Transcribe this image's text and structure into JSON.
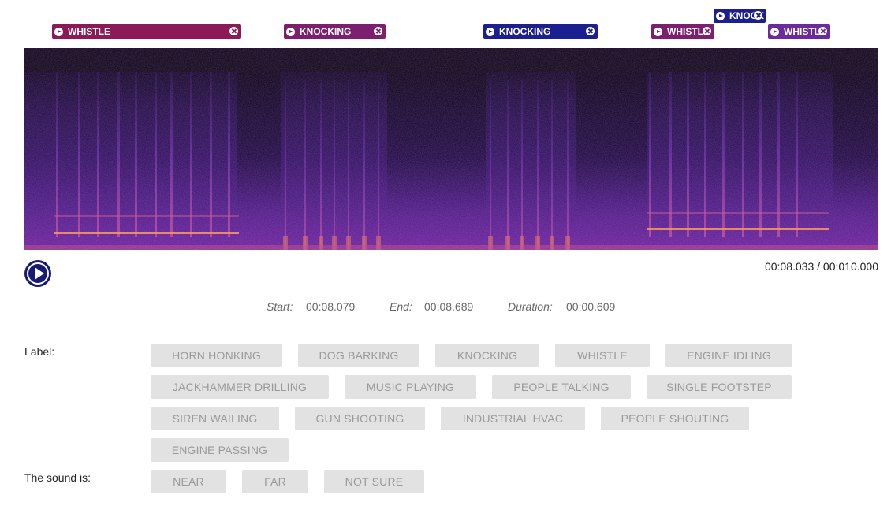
{
  "tags": [
    {
      "label": "WHISTLE",
      "color": "#8b1a56"
    },
    {
      "label": "KNOCKING",
      "color": "#7d1f6f"
    },
    {
      "label": "KNOCKING",
      "color": "#1b1f8f"
    },
    {
      "label": "WHISTLE",
      "color": "#7d1f6f"
    },
    {
      "label": "KNOCK",
      "color": "#1b1f8f"
    },
    {
      "label": "WHISTLE",
      "color": "#6b2a9e"
    }
  ],
  "player": {
    "time_display": "00:08.033 / 00:010.000",
    "play_icon": "play-icon"
  },
  "selection": {
    "start_label": "Start:",
    "start_value": "00:08.079",
    "end_label": "End:",
    "end_value": "00:08.689",
    "duration_label": "Duration:",
    "duration_value": "00:00.609"
  },
  "form": {
    "label_heading": "Label:",
    "sound_heading": "The sound is:",
    "labels": [
      "HORN HONKING",
      "DOG BARKING",
      "KNOCKING",
      "WHISTLE",
      "ENGINE IDLING",
      "JACKHAMMER DRILLING",
      "MUSIC PLAYING",
      "PEOPLE TALKING",
      "SINGLE FOOTSTEP",
      "SIREN WAILING",
      "GUN SHOOTING",
      "INDUSTRIAL HVAC",
      "PEOPLE SHOUTING",
      "ENGINE PASSING"
    ],
    "proximity": [
      "NEAR",
      "FAR",
      "NOT SURE"
    ]
  }
}
